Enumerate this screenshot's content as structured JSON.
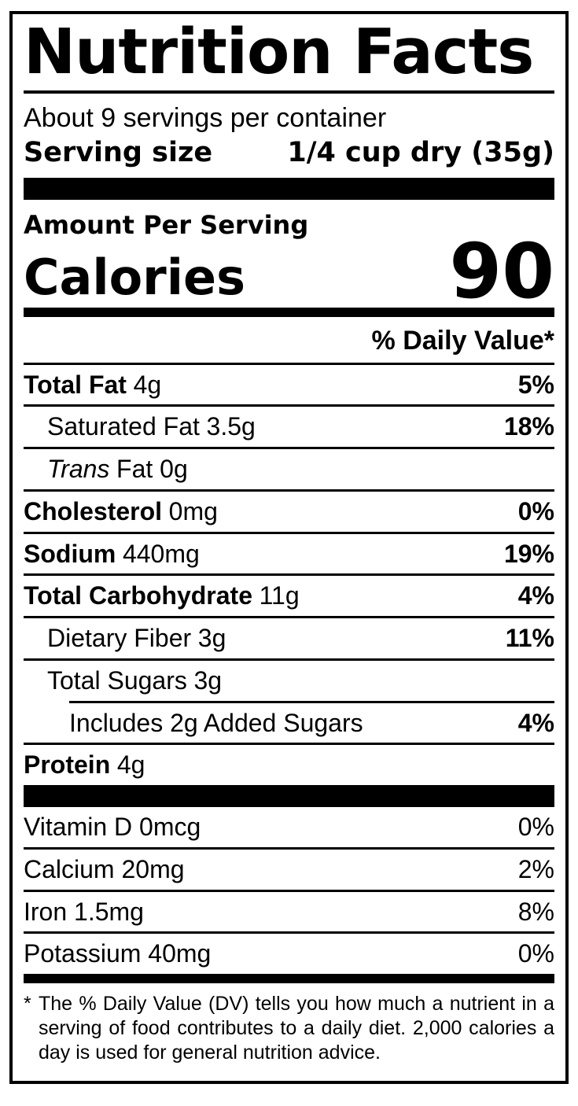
{
  "label": {
    "title": "Nutrition Facts",
    "servings_per_container": "About 9 servings per container",
    "serving_size_label": "Serving size",
    "serving_size_value": "1/4 cup dry (35g)",
    "amount_per_serving": "Amount Per Serving",
    "calories_label": "Calories",
    "calories_value": "90",
    "daily_value_header": "% Daily Value*",
    "nutrients": [
      {
        "name": "Total Fat",
        "amount": "4g",
        "dv": "5%"
      },
      {
        "name": "Saturated Fat",
        "amount": "3.5g",
        "dv": "18%"
      },
      {
        "name": "Trans",
        "amount": "Fat 0g",
        "dv": ""
      },
      {
        "name": "Cholesterol",
        "amount": "0mg",
        "dv": "0%"
      },
      {
        "name": "Sodium",
        "amount": "440mg",
        "dv": "19%"
      },
      {
        "name": "Total Carbohydrate",
        "amount": "11g",
        "dv": "4%"
      },
      {
        "name": "Dietary Fiber",
        "amount": "3g",
        "dv": "11%"
      },
      {
        "name": "Total Sugars",
        "amount": "3g",
        "dv": ""
      },
      {
        "name": "Includes 2g Added Sugars",
        "amount": "",
        "dv": "4%"
      },
      {
        "name": "Protein",
        "amount": "4g",
        "dv": ""
      }
    ],
    "micronutrients": [
      {
        "name": "Vitamin D 0mcg",
        "dv": "0%"
      },
      {
        "name": "Calcium 20mg",
        "dv": "2%"
      },
      {
        "name": "Iron 1.5mg",
        "dv": "8%"
      },
      {
        "name": "Potassium 40mg",
        "dv": "0%"
      }
    ],
    "footnote_marker": "*",
    "footnote": "The % Daily Value (DV) tells you how much a nutrient in a serving of food contributes to a daily diet. 2,000 calories a day is used for general nutrition advice."
  },
  "colors": {
    "ink": "#000000",
    "background": "#ffffff"
  }
}
